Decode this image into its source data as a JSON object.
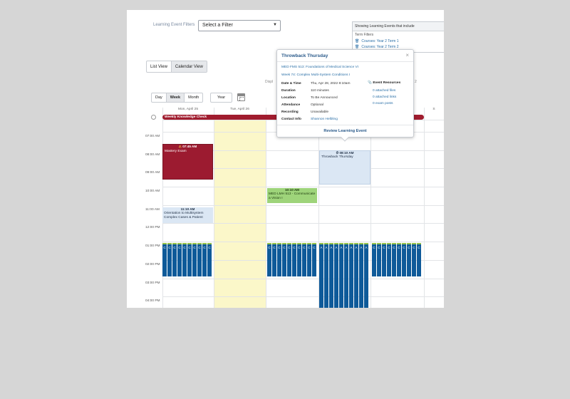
{
  "filters": {
    "label": "Learning Event Filters",
    "select_value": "Select a Filter"
  },
  "showing": {
    "header": "Showing Learning Events that include",
    "subheader": "Term Filters",
    "items": [
      "Courses: Year 2 Term 1",
      "Courses: Year 2 Term 2"
    ]
  },
  "views": {
    "list": "List View",
    "calendar": "Calendar View"
  },
  "display_note": "Displ",
  "display_note_end": "2",
  "ranges": {
    "day": "Day",
    "week": "Week",
    "month": "Month",
    "year": "Year"
  },
  "days": [
    {
      "label": "Mon, April 25"
    },
    {
      "label": "Tue, April 26"
    },
    {
      "label": ""
    },
    {
      "label": ""
    },
    {
      "label": ""
    },
    {
      "label": "S"
    }
  ],
  "hours": [
    "07:00 AM",
    "08:00 AM",
    "09:00 AM",
    "10:00 AM",
    "11:00 AM",
    "12:00 PM",
    "01:00 PM",
    "02:00 PM",
    "03:00 PM",
    "04:00 PM"
  ],
  "allday": {
    "label": "Weekly Knowledge Check"
  },
  "events": {
    "mastery": {
      "time": "07:45 AM",
      "name": "Mastery Exam"
    },
    "orientation": {
      "time": "11:10 AM",
      "name": "Orientation to Multisystem Complex Cases & Patient",
      "overflow": "Pr"
    },
    "lmh": {
      "time": "10:10 AM",
      "name": "MED LMH 513 - Communicate a Vision I"
    },
    "throwback": {
      "time": "08:10 AM",
      "name": "Throwback Thursday"
    }
  },
  "bars": {
    "mon_letters": [
      "C",
      "C",
      "C",
      "C",
      "C",
      "C",
      "C",
      "C",
      "C",
      "C"
    ],
    "wed_letters": [
      "C",
      "C",
      "C",
      "C",
      "C",
      "C",
      "C",
      "C",
      "C",
      "C"
    ],
    "thu_letters": [
      "A",
      "A",
      "A",
      "A",
      "A",
      "A",
      "A",
      "A",
      "A",
      "A"
    ],
    "fri_letters": [
      "C",
      "C",
      "C",
      "C",
      "C",
      "C",
      "C",
      "C",
      "C",
      "C"
    ]
  },
  "popover": {
    "title": "Throwback Thursday",
    "course": "MED FMS 513: Foundations of Medical Science VI",
    "week": "Week 74: Complex Multi-System Conditions I",
    "rows": [
      {
        "k": "Date & Time",
        "v": "Thu, Apr 28, 2022 8:10am"
      },
      {
        "k": "Duration",
        "v": "110 minutes"
      },
      {
        "k": "Location",
        "v": "To Be Announced"
      },
      {
        "k": "Attendance",
        "v": "Optional"
      },
      {
        "k": "Recording",
        "v": "Unavailable"
      },
      {
        "k": "Contact Info",
        "v": "Shannon Helbling"
      }
    ],
    "resources_title": "Event Resources",
    "resources": [
      "0 attached files",
      "0 attached links",
      "0 exam posts"
    ],
    "review": "Review Learning Event"
  },
  "colors": {
    "accent": "#2a6fa7",
    "maroon": "#9c1b30",
    "navy_bar": "#0e5a99",
    "green_event": "#9ed47a",
    "tuesday_fill": "#fbf7c9"
  }
}
